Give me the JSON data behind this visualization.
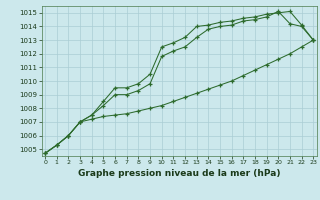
{
  "xlabel": "Graphe pression niveau de la mer (hPa)",
  "bg_color": "#cce8ec",
  "line_color": "#2d6b2d",
  "grid_color": "#aacdd4",
  "x_ticks": [
    0,
    1,
    2,
    3,
    4,
    5,
    6,
    7,
    8,
    9,
    10,
    11,
    12,
    13,
    14,
    15,
    16,
    17,
    18,
    19,
    20,
    21,
    22,
    23
  ],
  "ylim": [
    1004.5,
    1015.5
  ],
  "xlim": [
    -0.3,
    23.3
  ],
  "y_ticks": [
    1005,
    1006,
    1007,
    1008,
    1009,
    1010,
    1011,
    1012,
    1013,
    1014,
    1015
  ],
  "series": [
    [
      1004.7,
      1005.3,
      1006.0,
      1007.0,
      1007.2,
      1007.4,
      1007.5,
      1007.6,
      1007.8,
      1008.0,
      1008.2,
      1008.5,
      1008.8,
      1009.1,
      1009.4,
      1009.7,
      1010.0,
      1010.4,
      1010.8,
      1011.2,
      1011.6,
      1012.0,
      1012.5,
      1013.0
    ],
    [
      1004.7,
      1005.3,
      1006.0,
      1007.0,
      1007.5,
      1008.2,
      1009.0,
      1009.0,
      1009.3,
      1009.8,
      1011.8,
      1012.2,
      1012.5,
      1013.2,
      1013.8,
      1014.0,
      1014.1,
      1014.4,
      1014.5,
      1014.7,
      1015.1,
      1014.2,
      1014.0,
      1013.0
    ],
    [
      1004.7,
      1005.3,
      1006.0,
      1007.0,
      1007.5,
      1008.5,
      1009.5,
      1009.5,
      1009.8,
      1010.5,
      1012.5,
      1012.8,
      1013.2,
      1014.0,
      1014.1,
      1014.3,
      1014.4,
      1014.6,
      1014.7,
      1014.9,
      1015.0,
      1015.1,
      1014.1,
      1013.0
    ]
  ]
}
